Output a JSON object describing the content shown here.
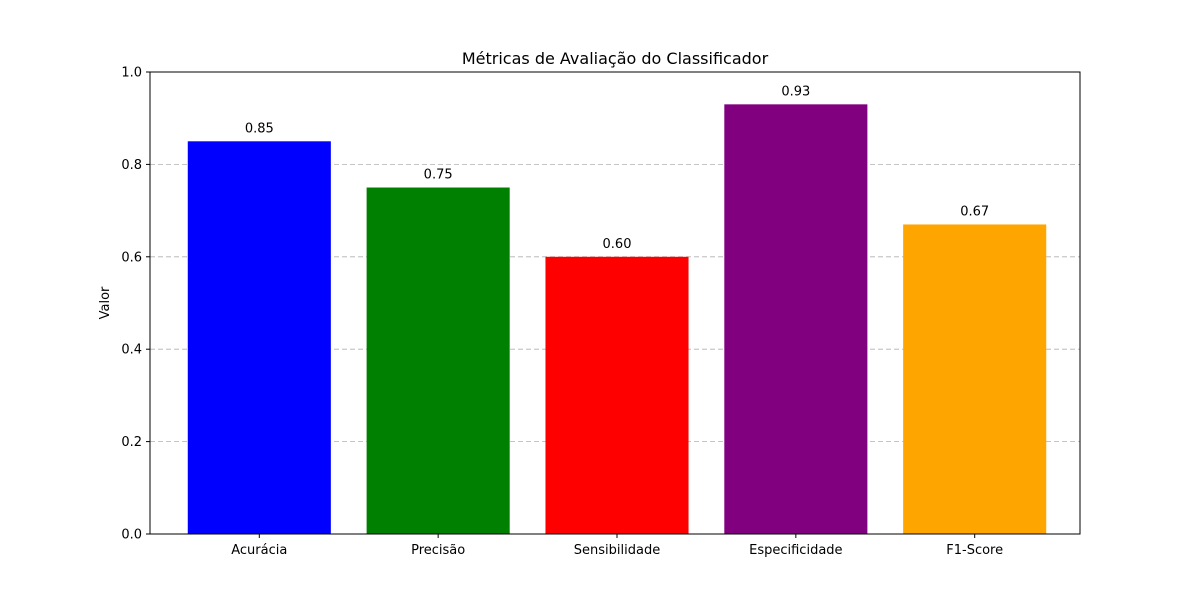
{
  "chart_data": {
    "type": "bar",
    "title": "Métricas de Avaliação do Classificador",
    "xlabel": "",
    "ylabel": "Valor",
    "categories": [
      "Acurácia",
      "Precisão",
      "Sensibilidade",
      "Especificidade",
      "F1-Score"
    ],
    "values": [
      0.85,
      0.75,
      0.6,
      0.93,
      0.67
    ],
    "value_labels": [
      "0.85",
      "0.75",
      "0.60",
      "0.93",
      "0.67"
    ],
    "colors": [
      "#0000ff",
      "#008000",
      "#ff0000",
      "#800080",
      "#ffa500"
    ],
    "ylim": [
      0,
      1.0
    ],
    "yticks": [
      0.0,
      0.2,
      0.4,
      0.6,
      0.8,
      1.0
    ],
    "ytick_labels": [
      "0.0",
      "0.2",
      "0.4",
      "0.6",
      "0.8",
      "1.0"
    ],
    "grid": "y-axis dashed",
    "legend": "none"
  }
}
